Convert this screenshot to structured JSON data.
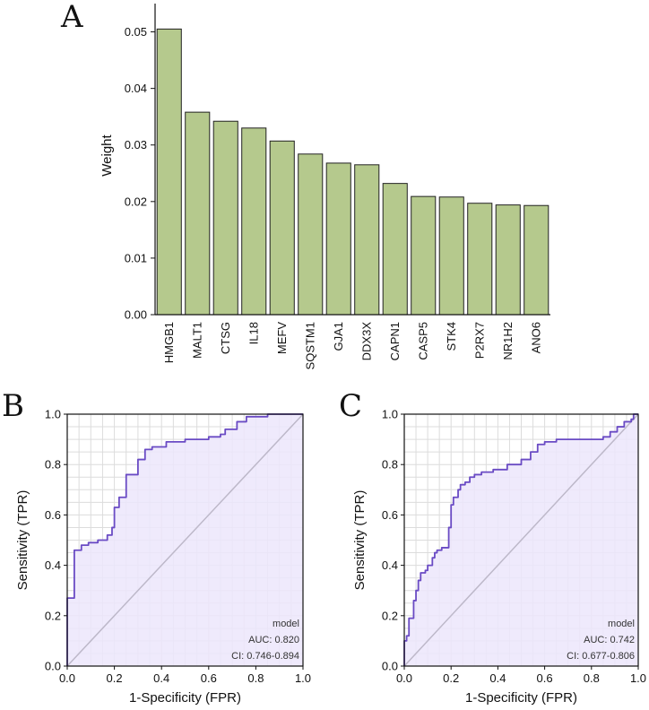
{
  "colors": {
    "bar_fill": "#b5c98d",
    "bar_stroke": "#222222",
    "roc_line": "#6a4bc4",
    "roc_fill": "#ece6fb",
    "grid": "#dcdcdc",
    "diagonal": "#bdb8c9"
  },
  "chart_data": [
    {
      "panel": "A",
      "type": "bar",
      "title": "",
      "xlabel": "",
      "ylabel": "Weight",
      "ylim": [
        0,
        0.055
      ],
      "yticks": [
        "0.00",
        "0.01",
        "0.02",
        "0.03",
        "0.04",
        "0.05"
      ],
      "ytick_values": [
        0,
        0.01,
        0.02,
        0.03,
        0.04,
        0.05
      ],
      "categories": [
        "HMGB1",
        "MALT1",
        "CTSG",
        "IL18",
        "MEFV",
        "SQSTM1",
        "GJA1",
        "DDX3X",
        "CAPN1",
        "CASP5",
        "STK4",
        "P2RX7",
        "NR1H2",
        "ANO6"
      ],
      "values": [
        0.0505,
        0.0358,
        0.0342,
        0.033,
        0.0307,
        0.0284,
        0.0268,
        0.0265,
        0.0232,
        0.0209,
        0.0208,
        0.0197,
        0.0194,
        0.0193
      ]
    },
    {
      "panel": "B",
      "type": "line",
      "xlabel": "1-Specificity (FPR)",
      "ylabel": "Sensitivity (TPR)",
      "xlim": [
        0,
        1
      ],
      "ylim": [
        0,
        1
      ],
      "xticks": [
        "0.0",
        "0.2",
        "0.4",
        "0.6",
        "0.8",
        "1.0"
      ],
      "yticks": [
        "0.0",
        "0.2",
        "0.4",
        "0.6",
        "0.8",
        "1.0"
      ],
      "tick_values": [
        0,
        0.2,
        0.4,
        0.6,
        0.8,
        1.0
      ],
      "legend": {
        "title": "model",
        "auc": "AUC: 0.820",
        "ci": "CI: 0.746-0.894",
        "placement": "bottom-right"
      },
      "series": [
        {
          "name": "model",
          "x": [
            0,
            0,
            0.01,
            0.01,
            0.03,
            0.03,
            0.06,
            0.06,
            0.09,
            0.09,
            0.13,
            0.13,
            0.17,
            0.17,
            0.19,
            0.19,
            0.2,
            0.2,
            0.22,
            0.22,
            0.25,
            0.25,
            0.3,
            0.3,
            0.33,
            0.33,
            0.36,
            0.36,
            0.42,
            0.42,
            0.5,
            0.5,
            0.6,
            0.6,
            0.65,
            0.65,
            0.67,
            0.67,
            0.72,
            0.72,
            0.76,
            0.76,
            0.85,
            0.85,
            1.0
          ],
          "y": [
            0,
            0.27,
            0.27,
            0.27,
            0.27,
            0.46,
            0.46,
            0.48,
            0.48,
            0.49,
            0.49,
            0.5,
            0.5,
            0.52,
            0.52,
            0.55,
            0.55,
            0.63,
            0.63,
            0.67,
            0.67,
            0.76,
            0.76,
            0.82,
            0.82,
            0.86,
            0.86,
            0.87,
            0.87,
            0.89,
            0.89,
            0.9,
            0.9,
            0.91,
            0.91,
            0.92,
            0.92,
            0.94,
            0.94,
            0.97,
            0.97,
            0.99,
            0.99,
            1.0,
            1.0
          ]
        }
      ]
    },
    {
      "panel": "C",
      "type": "line",
      "xlabel": "1-Specificity (FPR)",
      "ylabel": "Sensitivity (TPR)",
      "xlim": [
        0,
        1
      ],
      "ylim": [
        0,
        1
      ],
      "xticks": [
        "0.0",
        "0.2",
        "0.4",
        "0.6",
        "0.8",
        "1.0"
      ],
      "yticks": [
        "0.0",
        "0.2",
        "0.4",
        "0.6",
        "0.8",
        "1.0"
      ],
      "tick_values": [
        0,
        0.2,
        0.4,
        0.6,
        0.8,
        1.0
      ],
      "legend": {
        "title": "model",
        "auc": "AUC: 0.742",
        "ci": "CI: 0.677-0.806",
        "placement": "bottom-right"
      },
      "series": [
        {
          "name": "model",
          "x": [
            0,
            0,
            0.01,
            0.01,
            0.02,
            0.02,
            0.04,
            0.04,
            0.05,
            0.05,
            0.06,
            0.06,
            0.07,
            0.07,
            0.09,
            0.09,
            0.1,
            0.1,
            0.12,
            0.12,
            0.13,
            0.13,
            0.14,
            0.14,
            0.16,
            0.16,
            0.19,
            0.19,
            0.2,
            0.2,
            0.21,
            0.21,
            0.23,
            0.23,
            0.24,
            0.24,
            0.26,
            0.26,
            0.28,
            0.28,
            0.3,
            0.3,
            0.33,
            0.33,
            0.38,
            0.38,
            0.44,
            0.44,
            0.5,
            0.5,
            0.54,
            0.54,
            0.57,
            0.57,
            0.6,
            0.6,
            0.65,
            0.65,
            0.85,
            0.85,
            0.88,
            0.88,
            0.91,
            0.91,
            0.94,
            0.94,
            0.97,
            0.97,
            0.98,
            0.98,
            1.0
          ],
          "y": [
            0,
            0.1,
            0.1,
            0.12,
            0.12,
            0.19,
            0.19,
            0.26,
            0.26,
            0.3,
            0.3,
            0.34,
            0.34,
            0.37,
            0.37,
            0.38,
            0.38,
            0.4,
            0.4,
            0.43,
            0.43,
            0.45,
            0.45,
            0.46,
            0.46,
            0.47,
            0.47,
            0.55,
            0.55,
            0.64,
            0.64,
            0.67,
            0.67,
            0.7,
            0.7,
            0.72,
            0.72,
            0.73,
            0.73,
            0.75,
            0.75,
            0.76,
            0.76,
            0.77,
            0.77,
            0.78,
            0.78,
            0.8,
            0.8,
            0.82,
            0.82,
            0.85,
            0.85,
            0.88,
            0.88,
            0.89,
            0.89,
            0.9,
            0.9,
            0.91,
            0.91,
            0.93,
            0.93,
            0.95,
            0.95,
            0.97,
            0.97,
            0.98,
            0.98,
            1.0,
            1.0
          ]
        }
      ]
    }
  ],
  "panel_labels": [
    "A",
    "B",
    "C"
  ]
}
